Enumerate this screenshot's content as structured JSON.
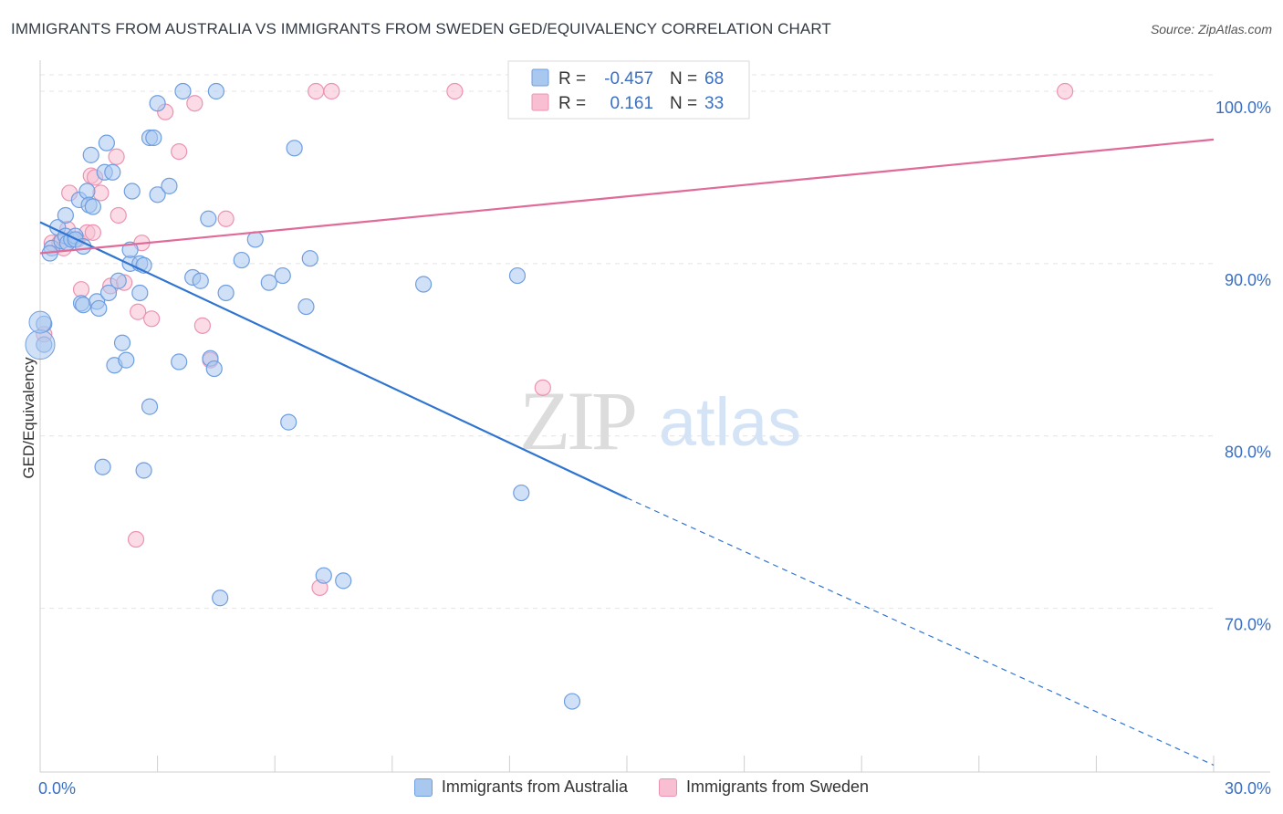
{
  "title": "IMMIGRANTS FROM AUSTRALIA VS IMMIGRANTS FROM SWEDEN GED/EQUIVALENCY CORRELATION CHART",
  "source": "Source: ZipAtlas.com",
  "watermark": {
    "zip": "ZIP",
    "atlas": "atlas"
  },
  "colors": {
    "blue_fill": "#a9c8f0",
    "blue_stroke": "#6f9ee0",
    "blue_line": "#2f74d0",
    "pink_fill": "#f7bfd1",
    "pink_stroke": "#ec93b0",
    "pink_line": "#e06a98",
    "axis_text": "#3a6fc4",
    "grid": "#e4e4e4"
  },
  "chart_data": {
    "type": "scatter",
    "title": "IMMIGRANTS FROM AUSTRALIA VS IMMIGRANTS FROM SWEDEN GED/EQUIVALENCY CORRELATION CHART",
    "xlabel": "",
    "ylabel": "GED/Equivalency",
    "xlim": [
      0,
      30
    ],
    "ylim": [
      60.5,
      101.8
    ],
    "x_tick_labels": [
      "0.0%",
      "30.0%"
    ],
    "y_ticks": [
      70,
      80,
      90,
      100
    ],
    "y_tick_labels": [
      "70.0%",
      "80.0%",
      "90.0%",
      "100.0%"
    ],
    "legend_box": [
      {
        "r_label": "R =",
        "r_value": "-0.457",
        "n_label": "N =",
        "n_value": "68"
      },
      {
        "r_label": "R =",
        "r_value": "0.161",
        "n_label": "N =",
        "n_value": "33"
      }
    ],
    "series": [
      {
        "name": "Immigrants from Australia",
        "color": "blue",
        "trend": {
          "x0": 0,
          "y0": 92.4,
          "x1": 15,
          "y1": 76.4,
          "dash_to_x": 30,
          "dash_to_y": 60.9
        },
        "points": [
          [
            0.1,
            86.5
          ],
          [
            0.1,
            85.3
          ],
          [
            0.3,
            90.9
          ],
          [
            0.45,
            92.1
          ],
          [
            0.55,
            91.3
          ],
          [
            0.65,
            92.8
          ],
          [
            0.65,
            91.6
          ],
          [
            0.7,
            91.2
          ],
          [
            0.8,
            91.4
          ],
          [
            0.9,
            91.6
          ],
          [
            1.0,
            93.7
          ],
          [
            1.05,
            87.7
          ],
          [
            1.1,
            87.6
          ],
          [
            1.2,
            94.2
          ],
          [
            1.25,
            93.4
          ],
          [
            1.35,
            93.3
          ],
          [
            1.3,
            96.3
          ],
          [
            1.45,
            87.8
          ],
          [
            1.5,
            87.4
          ],
          [
            1.65,
            95.3
          ],
          [
            1.7,
            97.0
          ],
          [
            1.75,
            88.3
          ],
          [
            1.85,
            95.3
          ],
          [
            1.9,
            84.1
          ],
          [
            2.0,
            89.0
          ],
          [
            2.1,
            85.4
          ],
          [
            2.2,
            84.4
          ],
          [
            2.3,
            90.0
          ],
          [
            2.3,
            90.8
          ],
          [
            2.35,
            94.2
          ],
          [
            2.55,
            90.0
          ],
          [
            2.55,
            88.3
          ],
          [
            2.65,
            89.9
          ],
          [
            2.8,
            81.7
          ],
          [
            2.8,
            97.3
          ],
          [
            2.9,
            97.3
          ],
          [
            3.0,
            99.3
          ],
          [
            3.0,
            94.0
          ],
          [
            3.3,
            94.5
          ],
          [
            3.55,
            84.3
          ],
          [
            3.65,
            100.0
          ],
          [
            3.9,
            89.2
          ],
          [
            4.1,
            89.0
          ],
          [
            4.3,
            92.6
          ],
          [
            4.35,
            84.5
          ],
          [
            4.45,
            83.9
          ],
          [
            4.6,
            70.6
          ],
          [
            4.75,
            88.3
          ],
          [
            4.5,
            100.0
          ],
          [
            5.15,
            90.2
          ],
          [
            5.5,
            91.4
          ],
          [
            5.85,
            88.9
          ],
          [
            6.2,
            89.3
          ],
          [
            6.35,
            80.8
          ],
          [
            6.5,
            96.7
          ],
          [
            6.8,
            87.5
          ],
          [
            6.9,
            90.3
          ],
          [
            7.25,
            71.9
          ],
          [
            7.75,
            71.6
          ],
          [
            9.8,
            88.8
          ],
          [
            12.2,
            89.3
          ],
          [
            12.3,
            76.7
          ],
          [
            13.6,
            64.6
          ],
          [
            1.6,
            78.2
          ],
          [
            2.65,
            78.0
          ],
          [
            0.25,
            90.6
          ],
          [
            0.9,
            91.4
          ],
          [
            1.1,
            91.0
          ]
        ]
      },
      {
        "name": "Immigrants from Sweden",
        "color": "pink",
        "trend": {
          "x0": 0,
          "y0": 90.6,
          "x1": 30,
          "y1": 97.2
        },
        "points": [
          [
            0.1,
            85.9
          ],
          [
            0.3,
            91.2
          ],
          [
            0.5,
            91.2
          ],
          [
            0.6,
            90.9
          ],
          [
            0.7,
            92.0
          ],
          [
            0.75,
            94.1
          ],
          [
            0.95,
            91.4
          ],
          [
            1.05,
            88.5
          ],
          [
            1.2,
            91.8
          ],
          [
            1.3,
            95.1
          ],
          [
            1.4,
            95.0
          ],
          [
            1.55,
            94.1
          ],
          [
            1.8,
            88.7
          ],
          [
            1.95,
            96.2
          ],
          [
            2.0,
            92.8
          ],
          [
            2.15,
            88.9
          ],
          [
            2.45,
            74.0
          ],
          [
            2.5,
            87.2
          ],
          [
            2.6,
            91.2
          ],
          [
            2.85,
            86.8
          ],
          [
            3.2,
            98.8
          ],
          [
            3.55,
            96.5
          ],
          [
            3.95,
            99.3
          ],
          [
            4.15,
            86.4
          ],
          [
            4.35,
            84.4
          ],
          [
            4.75,
            92.6
          ],
          [
            7.05,
            100.0
          ],
          [
            7.15,
            71.2
          ],
          [
            7.45,
            100.0
          ],
          [
            10.6,
            100.0
          ],
          [
            12.85,
            82.8
          ],
          [
            26.2,
            100.0
          ],
          [
            1.35,
            91.8
          ]
        ]
      }
    ]
  }
}
